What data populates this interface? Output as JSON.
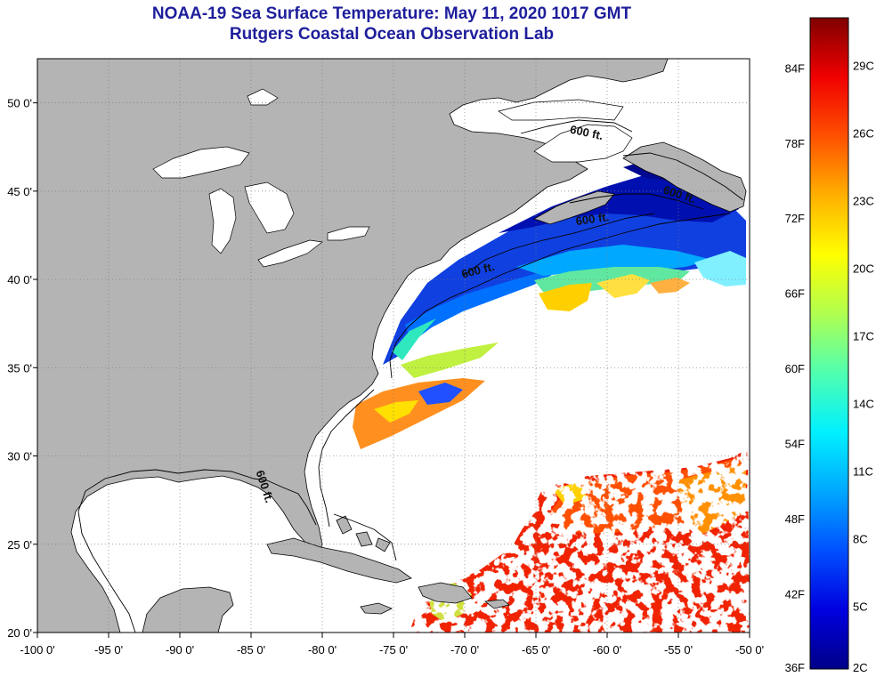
{
  "header": {
    "title": "NOAA-19 Sea Surface Temperature:  May 11, 2020 1017 GMT",
    "subtitle": "Rutgers Coastal Ocean Observation Lab"
  },
  "map": {
    "lon_range": [
      -100,
      -50
    ],
    "lat_range": [
      20,
      52.5
    ],
    "lon_ticks": [
      {
        "value": -100,
        "label": "-100 0'"
      },
      {
        "value": -95,
        "label": "-95 0'"
      },
      {
        "value": -90,
        "label": "-90 0'"
      },
      {
        "value": -85,
        "label": "-85 0'"
      },
      {
        "value": -80,
        "label": "-80 0'"
      },
      {
        "value": -75,
        "label": "-75 0'"
      },
      {
        "value": -70,
        "label": "-70 0'"
      },
      {
        "value": -65,
        "label": "-65 0'"
      },
      {
        "value": -60,
        "label": "-60 0'"
      },
      {
        "value": -55,
        "label": "-55 0'"
      },
      {
        "value": -50,
        "label": "-50 0'"
      }
    ],
    "lat_ticks": [
      {
        "value": 50,
        "label": "50 0'"
      },
      {
        "value": 45,
        "label": "45 0'"
      },
      {
        "value": 40,
        "label": "40 0'"
      },
      {
        "value": 35,
        "label": "35 0'"
      },
      {
        "value": 30,
        "label": "30 0'"
      },
      {
        "value": 25,
        "label": "25 0'"
      },
      {
        "value": 20,
        "label": "20 0'"
      }
    ],
    "land_color": "#b4b4b4",
    "ocean_color": "#ffffff",
    "gridlines": "dotted",
    "contour_labels": [
      {
        "text": "600 ft.",
        "lon": -61.5,
        "lat": 48.1,
        "angle": 12
      },
      {
        "text": "600 ft.",
        "lon": -55,
        "lat": 44.6,
        "angle": 18
      },
      {
        "text": "600 ft.",
        "lon": -61,
        "lat": 43.2,
        "angle": -8
      },
      {
        "text": "600 ft.",
        "lon": -69,
        "lat": 40.3,
        "angle": -14
      },
      {
        "text": "600 ft.",
        "lon": -84.3,
        "lat": 28.2,
        "angle": 72
      }
    ]
  },
  "colorbar": {
    "min_f": 36,
    "max_f": 88,
    "colors": [
      "#000088",
      "#0000e0",
      "#0050ff",
      "#00a8ff",
      "#00f0ff",
      "#50ffb0",
      "#b0ff50",
      "#ffff00",
      "#ffb000",
      "#ff5000",
      "#f00000",
      "#800000"
    ],
    "f_labels": [
      {
        "value": 36,
        "label": "36F"
      },
      {
        "value": 42,
        "label": "42F"
      },
      {
        "value": 48,
        "label": "48F"
      },
      {
        "value": 54,
        "label": "54F"
      },
      {
        "value": 60,
        "label": "60F"
      },
      {
        "value": 66,
        "label": "66F"
      },
      {
        "value": 72,
        "label": "72F"
      },
      {
        "value": 78,
        "label": "78F"
      },
      {
        "value": 84,
        "label": "84F"
      }
    ],
    "c_labels": [
      {
        "value": 2,
        "label": "2C"
      },
      {
        "value": 5,
        "label": "5C"
      },
      {
        "value": 8,
        "label": "8C"
      },
      {
        "value": 11,
        "label": "11C"
      },
      {
        "value": 14,
        "label": "14C"
      },
      {
        "value": 17,
        "label": "17C"
      },
      {
        "value": 20,
        "label": "20C"
      },
      {
        "value": 23,
        "label": "23C"
      },
      {
        "value": 26,
        "label": "26C"
      },
      {
        "value": 29,
        "label": "29C"
      }
    ]
  }
}
